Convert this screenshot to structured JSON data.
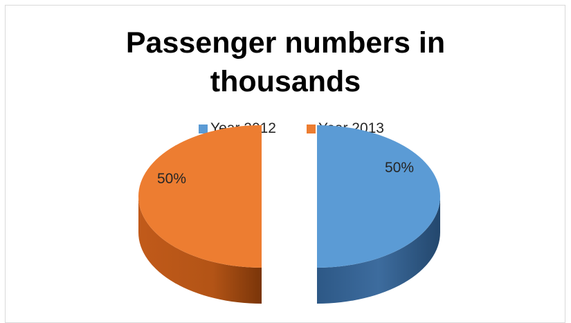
{
  "chart_data": {
    "type": "pie",
    "title": "Passenger numbers in\nthousands",
    "categories": [
      "Year 2012",
      "Year 2013"
    ],
    "values": [
      50,
      50
    ],
    "percent_labels": [
      "50%",
      "50%"
    ],
    "legend_position": "top",
    "colors": [
      "#5b9bd5",
      "#ed7d31"
    ],
    "style": "3d-exploded"
  }
}
